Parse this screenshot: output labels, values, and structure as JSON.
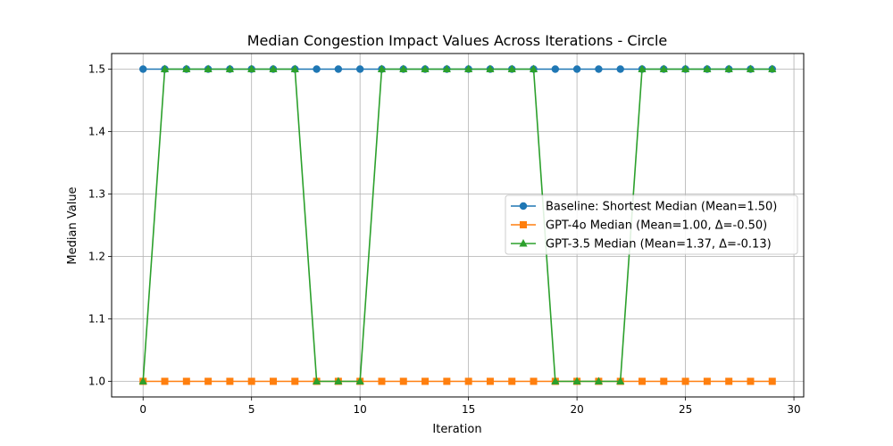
{
  "chart_data": {
    "type": "line",
    "title": "Median Congestion Impact Values Across Iterations - Circle",
    "xlabel": "Iteration",
    "ylabel": "Median Value",
    "xlim": [
      -1.45,
      30.45
    ],
    "ylim": [
      0.975,
      1.525
    ],
    "xticks": [
      0,
      5,
      10,
      15,
      20,
      25,
      30
    ],
    "yticks": [
      1.0,
      1.1,
      1.2,
      1.3,
      1.4,
      1.5
    ],
    "xtick_labels": [
      "0",
      "5",
      "10",
      "15",
      "20",
      "25",
      "30"
    ],
    "ytick_labels": [
      "1.0",
      "1.1",
      "1.2",
      "1.3",
      "1.4",
      "1.5"
    ],
    "grid": true,
    "legend_position": "center-right",
    "x": [
      0,
      1,
      2,
      3,
      4,
      5,
      6,
      7,
      8,
      9,
      10,
      11,
      12,
      13,
      14,
      15,
      16,
      17,
      18,
      19,
      20,
      21,
      22,
      23,
      24,
      25,
      26,
      27,
      28,
      29
    ],
    "series": [
      {
        "name": "Baseline: Shortest Median (Mean=1.50)",
        "color": "#1f77b4",
        "marker": "circle",
        "values": [
          1.5,
          1.5,
          1.5,
          1.5,
          1.5,
          1.5,
          1.5,
          1.5,
          1.5,
          1.5,
          1.5,
          1.5,
          1.5,
          1.5,
          1.5,
          1.5,
          1.5,
          1.5,
          1.5,
          1.5,
          1.5,
          1.5,
          1.5,
          1.5,
          1.5,
          1.5,
          1.5,
          1.5,
          1.5,
          1.5
        ]
      },
      {
        "name": "GPT-4o Median (Mean=1.00, Δ=-0.50)",
        "color": "#ff7f0e",
        "marker": "square",
        "values": [
          1.0,
          1.0,
          1.0,
          1.0,
          1.0,
          1.0,
          1.0,
          1.0,
          1.0,
          1.0,
          1.0,
          1.0,
          1.0,
          1.0,
          1.0,
          1.0,
          1.0,
          1.0,
          1.0,
          1.0,
          1.0,
          1.0,
          1.0,
          1.0,
          1.0,
          1.0,
          1.0,
          1.0,
          1.0,
          1.0
        ]
      },
      {
        "name": "GPT-3.5 Median (Mean=1.37, Δ=-0.13)",
        "color": "#2ca02c",
        "marker": "triangle",
        "values": [
          1.0,
          1.5,
          1.5,
          1.5,
          1.5,
          1.5,
          1.5,
          1.5,
          1.0,
          1.0,
          1.0,
          1.5,
          1.5,
          1.5,
          1.5,
          1.5,
          1.5,
          1.5,
          1.5,
          1.0,
          1.0,
          1.0,
          1.0,
          1.5,
          1.5,
          1.5,
          1.5,
          1.5,
          1.5,
          1.5
        ]
      }
    ]
  }
}
